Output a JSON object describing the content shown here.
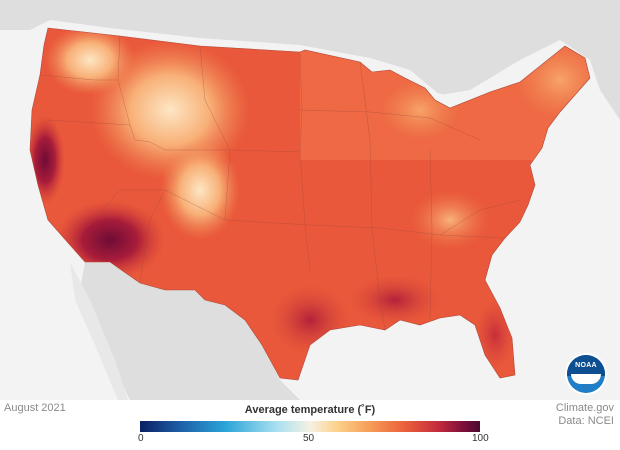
{
  "date_label": "August 2021",
  "legend": {
    "title": "Average temperature (˚F)",
    "ticks": [
      "0",
      "50",
      "100"
    ]
  },
  "credits": {
    "site": "Climate.gov",
    "source": "Data: NCEI"
  },
  "logo": {
    "icon": "noaa-logo-icon",
    "text": "NOAA"
  },
  "colors": {
    "land_background": "#dcdcdc",
    "ocean_background": "#f3f3f3",
    "state_border": "#9a4a3a",
    "warm": "#e9583a",
    "hot": "#b5203a",
    "mild": "#f6a66b"
  }
}
